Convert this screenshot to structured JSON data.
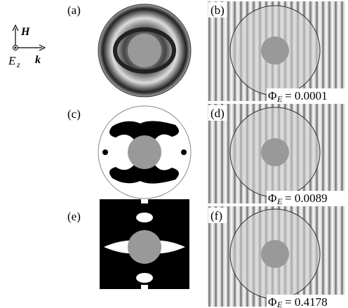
{
  "legend": {
    "field": "H",
    "wave": "k",
    "polarization": "E",
    "polarization_sub": "z"
  },
  "panels": [
    {
      "label": "(a)"
    },
    {
      "label": "(b)"
    },
    {
      "label": "(c)"
    },
    {
      "label": "(d)"
    },
    {
      "label": "(e)"
    },
    {
      "label": "(f)"
    }
  ],
  "results": [
    {
      "symbol": "Φ",
      "sub": "E",
      "value": "= 0.0001"
    },
    {
      "symbol": "Φ",
      "sub": "E",
      "value": "= 0.0089"
    },
    {
      "symbol": "Φ",
      "sub": "E",
      "value": "= 0.4178"
    }
  ]
}
